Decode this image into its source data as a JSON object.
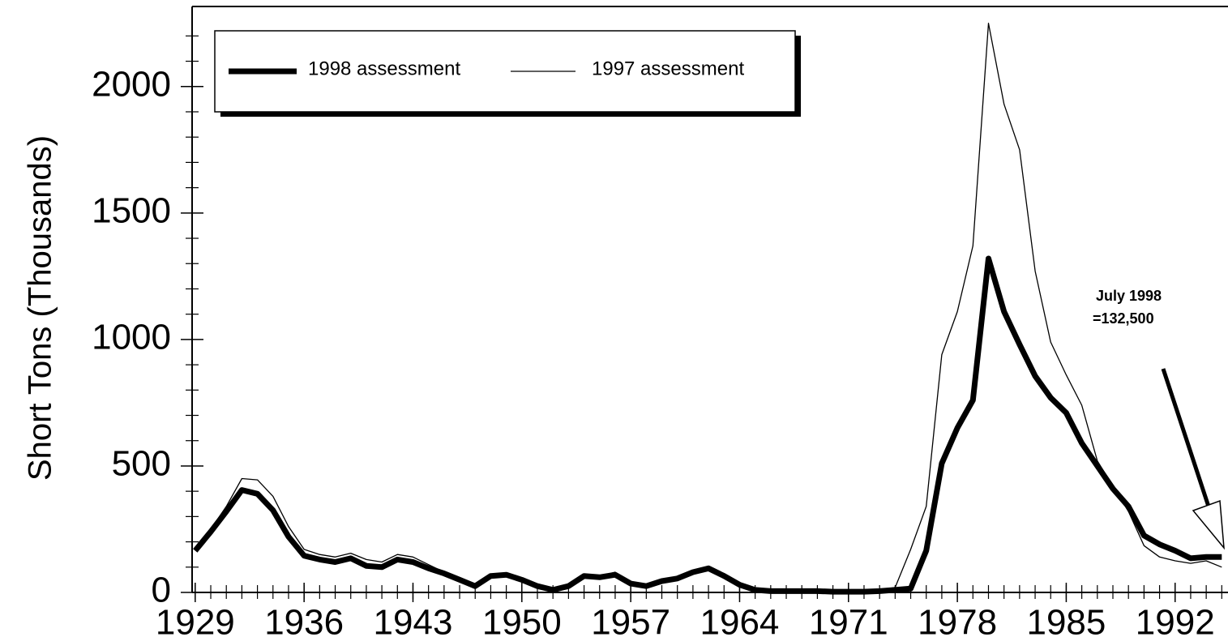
{
  "chart_data": {
    "type": "line",
    "ylabel": "Short Tons (Thousands)",
    "x": [
      1929,
      1930,
      1931,
      1932,
      1933,
      1934,
      1935,
      1936,
      1937,
      1938,
      1939,
      1940,
      1941,
      1942,
      1943,
      1944,
      1945,
      1946,
      1947,
      1948,
      1949,
      1950,
      1951,
      1952,
      1953,
      1954,
      1955,
      1956,
      1957,
      1958,
      1959,
      1960,
      1961,
      1962,
      1963,
      1964,
      1965,
      1966,
      1967,
      1968,
      1969,
      1970,
      1971,
      1972,
      1973,
      1974,
      1975,
      1976,
      1977,
      1978,
      1979,
      1980,
      1981,
      1982,
      1983,
      1984,
      1985,
      1986,
      1987,
      1988,
      1989,
      1990,
      1991,
      1992,
      1993,
      1994,
      1995
    ],
    "series": [
      {
        "name": "1998 assessment",
        "color": "#000000",
        "width": 7,
        "values": [
          165,
          240,
          320,
          405,
          390,
          325,
          220,
          145,
          130,
          120,
          135,
          105,
          100,
          130,
          120,
          95,
          75,
          50,
          25,
          65,
          70,
          50,
          25,
          10,
          25,
          65,
          60,
          70,
          35,
          25,
          45,
          55,
          80,
          95,
          65,
          30,
          10,
          5,
          5,
          5,
          5,
          3,
          3,
          3,
          5,
          10,
          15,
          165,
          510,
          650,
          760,
          1320,
          1110,
          980,
          855,
          770,
          710,
          590,
          500,
          410,
          340,
          225,
          190,
          165,
          135,
          140,
          140
        ]
      },
      {
        "name": "1997 assessment",
        "color": "#000000",
        "width": 1.3,
        "values": [
          170,
          250,
          340,
          450,
          445,
          380,
          260,
          170,
          150,
          140,
          155,
          130,
          120,
          150,
          140,
          110,
          80,
          55,
          30,
          70,
          75,
          55,
          30,
          15,
          30,
          70,
          65,
          80,
          40,
          30,
          50,
          60,
          85,
          100,
          70,
          35,
          12,
          8,
          8,
          8,
          8,
          8,
          8,
          8,
          8,
          20,
          170,
          340,
          940,
          1110,
          1370,
          2250,
          1930,
          1750,
          1270,
          990,
          860,
          740,
          520,
          420,
          320,
          185,
          140,
          125,
          115,
          125,
          100
        ]
      }
    ],
    "xlim": [
      1928.8,
      1995.4
    ],
    "xticks": [
      1929,
      1936,
      1943,
      1950,
      1957,
      1964,
      1971,
      1978,
      1985,
      1992
    ],
    "ylim": [
      0,
      2310
    ],
    "yticks": [
      0,
      500,
      1000,
      1500,
      2000
    ],
    "yticks_minor": [
      100,
      200,
      300,
      400,
      600,
      700,
      800,
      900,
      1100,
      1200,
      1300,
      1400,
      1600,
      1700,
      1800,
      1900,
      2100,
      2200
    ],
    "annotation": [
      "July 1998",
      "=132,500"
    ]
  }
}
